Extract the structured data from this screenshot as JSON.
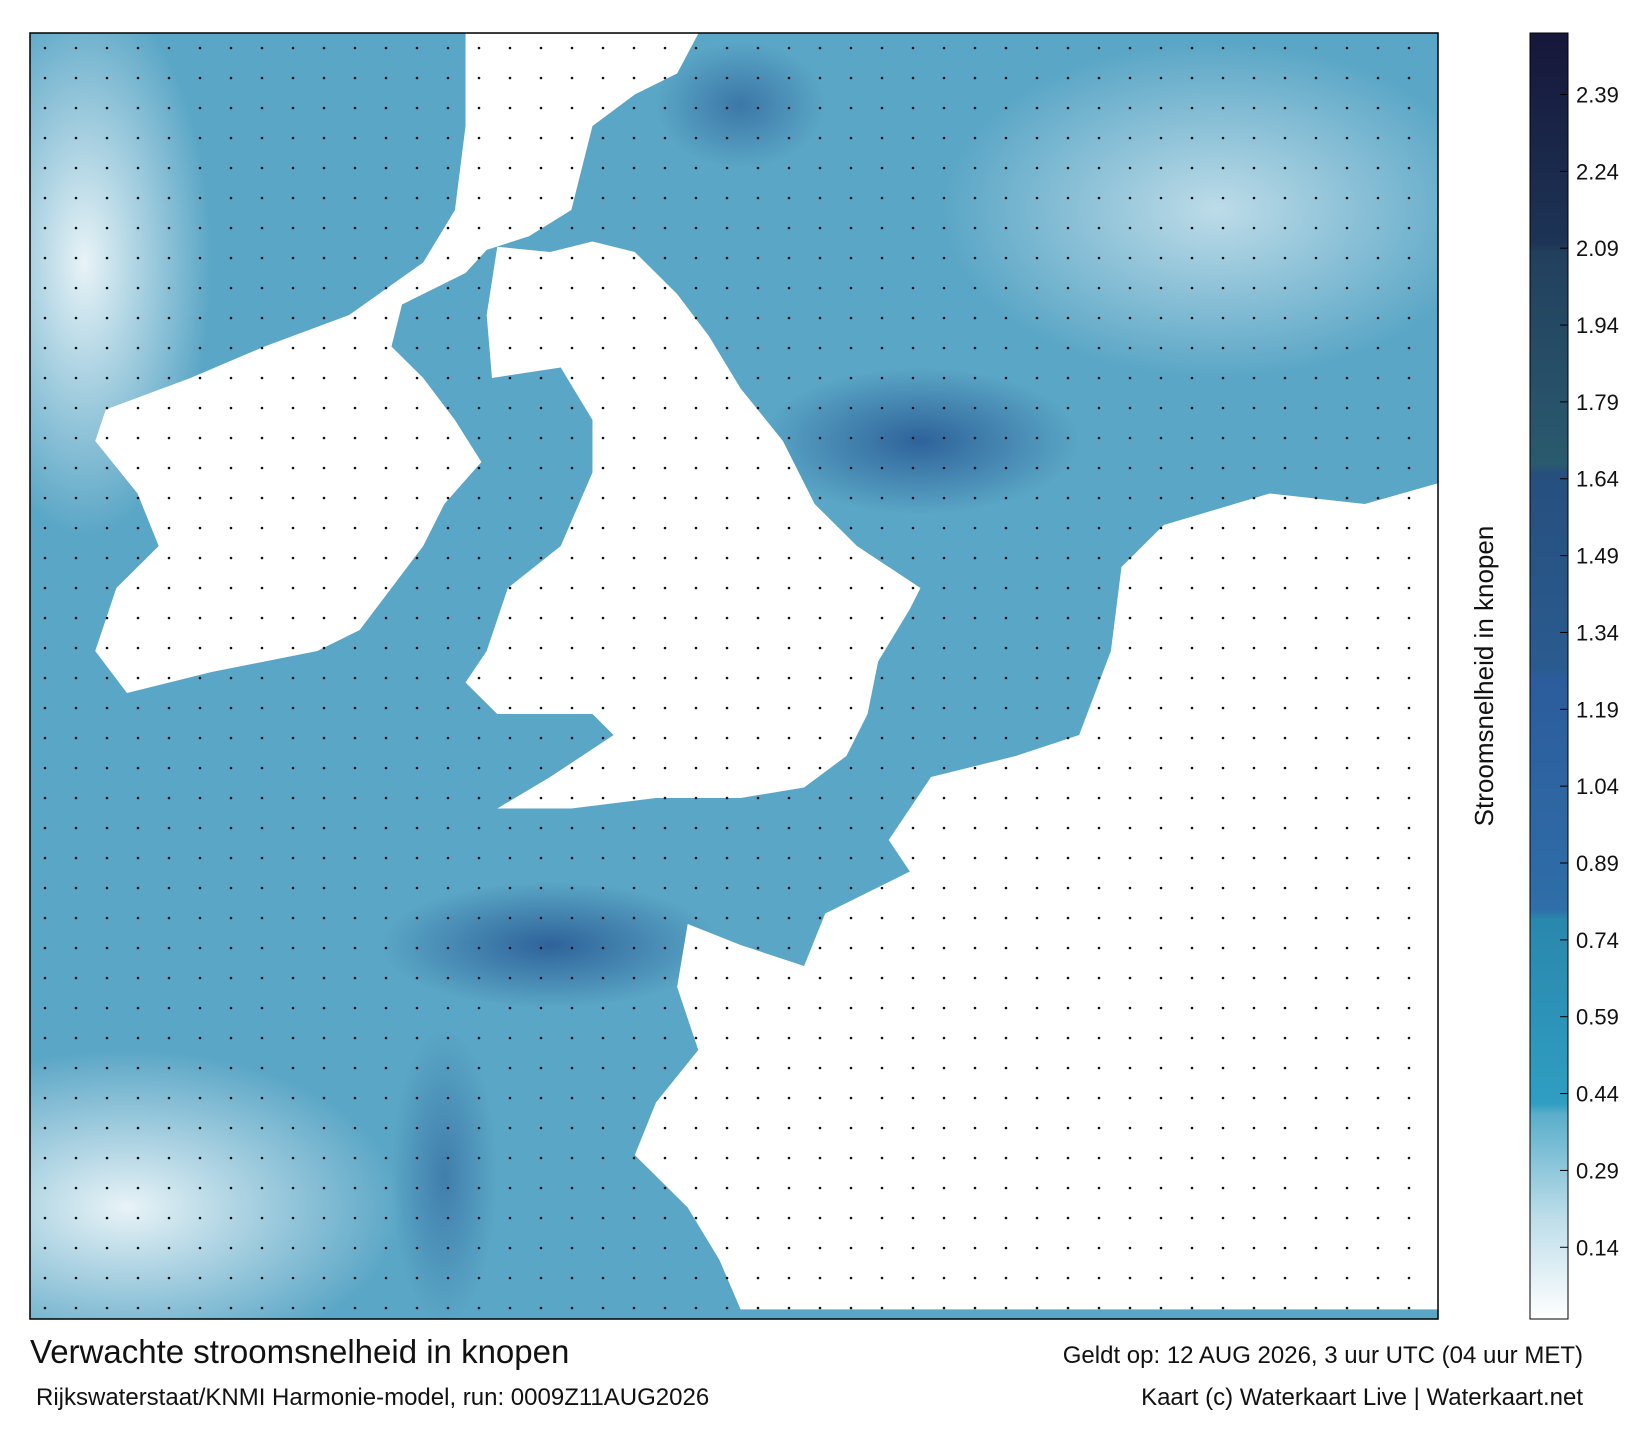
{
  "title": "Verwachte stroomsnelheid in knopen",
  "subtitle": "Rijkswaterstaat/KNMI Harmonie-model, run: 0009Z11AUG2026",
  "valid_time": "Geldt op: 12 AUG 2026, 3 uur UTC (04 uur MET)",
  "credit": "Kaart (c) Waterkaart Live | Waterkaart.net",
  "colorbar": {
    "label": "Stroomsnelheid in knopen",
    "lim": [
      0,
      2.51
    ],
    "ticks": [
      0.14,
      0.29,
      0.44,
      0.59,
      0.74,
      0.89,
      1.04,
      1.19,
      1.34,
      1.49,
      1.64,
      1.79,
      1.94,
      2.09,
      2.24,
      2.39
    ],
    "stops": [
      {
        "value": 0,
        "color": "#ffffff"
      },
      {
        "value": 0.2,
        "color": "#bcdde9"
      },
      {
        "value": 0.4,
        "color": "#5aaecb"
      },
      {
        "value": 0.42,
        "color": "#2f9ec2"
      },
      {
        "value": 0.78,
        "color": "#2a87ad"
      },
      {
        "value": 0.8,
        "color": "#2f6ea8"
      },
      {
        "value": 1.25,
        "color": "#2c5c9c"
      },
      {
        "value": 1.27,
        "color": "#2a5b8f"
      },
      {
        "value": 1.65,
        "color": "#264f7e"
      },
      {
        "value": 1.67,
        "color": "#2a5a6e"
      },
      {
        "value": 2.08,
        "color": "#22405e"
      },
      {
        "value": 2.1,
        "color": "#1d3456"
      },
      {
        "value": 2.51,
        "color": "#16173a"
      }
    ]
  }
}
